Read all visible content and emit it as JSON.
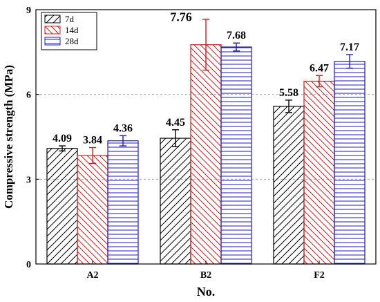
{
  "chart_data": {
    "type": "bar",
    "title": "",
    "xlabel": "No.",
    "ylabel": "Compressive strength (MPa)",
    "ylim": [
      0,
      9
    ],
    "yticks": [
      0,
      3,
      6,
      9
    ],
    "grid": "horizontal dashed at 3 and 6",
    "legend_position": "top-left",
    "categories": [
      "A2",
      "B2",
      "F2"
    ],
    "series": [
      {
        "name": "7d",
        "color": "#000000",
        "pattern": "diagonal",
        "values": [
          4.09,
          4.45,
          5.58
        ],
        "errors": [
          0.09,
          0.3,
          0.22
        ],
        "labels": [
          "4.09",
          "4.45",
          "5.58"
        ]
      },
      {
        "name": "14d",
        "color": "#cc2020",
        "pattern": "diagonal",
        "values": [
          3.84,
          7.76,
          6.47
        ],
        "errors": [
          0.28,
          0.9,
          0.2
        ],
        "labels": [
          "3.84",
          "7.76",
          "6.47"
        ]
      },
      {
        "name": "28d",
        "color": "#1a1acc",
        "pattern": "horizontal",
        "values": [
          4.36,
          7.68,
          7.17
        ],
        "errors": [
          0.18,
          0.14,
          0.24
        ],
        "labels": [
          "4.36",
          "7.68",
          "7.17"
        ]
      }
    ]
  }
}
